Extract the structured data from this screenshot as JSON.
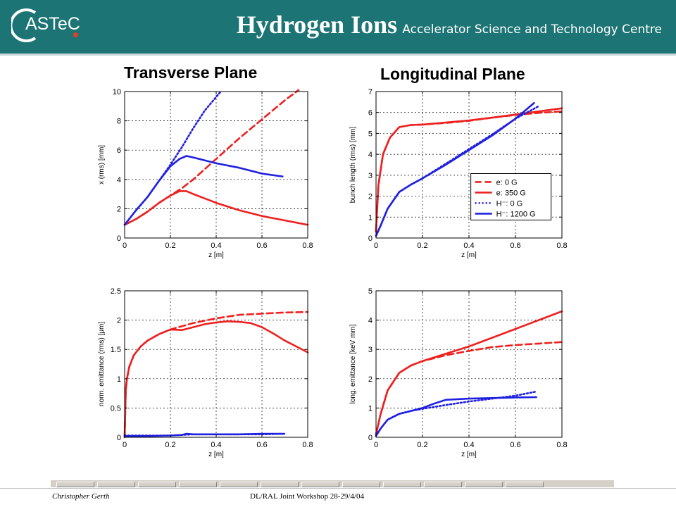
{
  "header": {
    "logo_text": "ASTeC",
    "title": "Hydrogen Ions",
    "organization": "Accelerator Science and Technology Centre"
  },
  "sections": {
    "left": "Transverse Plane",
    "right": "Longitudinal Plane"
  },
  "footer": {
    "author": "Christopher Gerth",
    "event": "DL/RAL Joint Workshop 28-29/4/04"
  },
  "colors": {
    "header_bg": "#1c7474",
    "electron": "#ee2020",
    "hion": "#2020e0"
  },
  "chart_data": [
    {
      "id": "x-rms",
      "type": "line",
      "xlabel": "z [m]",
      "ylabel": "x (rms) [mm]",
      "xlim": [
        0,
        0.8
      ],
      "ylim": [
        0,
        10
      ],
      "xticks": [
        0,
        0.2,
        0.4,
        0.6,
        0.8
      ],
      "yticks": [
        0,
        2,
        4,
        6,
        8,
        10
      ],
      "grid": true,
      "series": [
        {
          "color": "#ee2020",
          "style": "dashed",
          "x": [
            0,
            0.05,
            0.1,
            0.15,
            0.2,
            0.25,
            0.3,
            0.4,
            0.5,
            0.6,
            0.7,
            0.76
          ],
          "y": [
            0.9,
            1.3,
            1.8,
            2.4,
            2.9,
            3.4,
            4.0,
            5.4,
            6.8,
            8.1,
            9.4,
            10.1
          ]
        },
        {
          "color": "#ee2020",
          "style": "solid",
          "x": [
            0,
            0.05,
            0.1,
            0.15,
            0.2,
            0.24,
            0.27,
            0.3,
            0.35,
            0.4,
            0.5,
            0.6,
            0.7,
            0.8
          ],
          "y": [
            0.9,
            1.3,
            1.8,
            2.4,
            2.9,
            3.2,
            3.2,
            3.0,
            2.7,
            2.4,
            1.9,
            1.5,
            1.2,
            0.9
          ]
        },
        {
          "color": "#2020e0",
          "style": "dotted",
          "x": [
            0,
            0.05,
            0.1,
            0.15,
            0.2,
            0.25,
            0.3,
            0.35,
            0.42
          ],
          "y": [
            0.9,
            1.9,
            2.8,
            3.9,
            5.0,
            6.2,
            7.5,
            8.7,
            10.0
          ]
        },
        {
          "color": "#2020e0",
          "style": "solid",
          "x": [
            0,
            0.05,
            0.1,
            0.15,
            0.2,
            0.24,
            0.27,
            0.3,
            0.35,
            0.4,
            0.5,
            0.6,
            0.69
          ],
          "y": [
            0.9,
            1.9,
            2.8,
            3.9,
            4.9,
            5.4,
            5.6,
            5.5,
            5.3,
            5.1,
            4.8,
            4.4,
            4.2
          ]
        }
      ]
    },
    {
      "id": "bunch-length",
      "type": "line",
      "xlabel": "z [m]",
      "ylabel": "bunch length (rms) [mm]",
      "xlim": [
        0,
        0.8
      ],
      "ylim": [
        0,
        7
      ],
      "xticks": [
        0,
        0.2,
        0.4,
        0.6,
        0.8
      ],
      "yticks": [
        0,
        1,
        2,
        3,
        4,
        5,
        6,
        7
      ],
      "grid": true,
      "legend": {
        "position": "right",
        "entries": [
          {
            "label": "e: 0 G",
            "color": "#ee2020",
            "style": "dashed"
          },
          {
            "label": "e: 350 G",
            "color": "#ee2020",
            "style": "solid"
          },
          {
            "label": "H⁻: 0 G",
            "color": "#2020e0",
            "style": "dotted"
          },
          {
            "label": "H⁻: 1200 G",
            "color": "#2020e0",
            "style": "solid"
          }
        ]
      },
      "series": [
        {
          "color": "#ee2020",
          "style": "dashed",
          "x": [
            0,
            0.01,
            0.03,
            0.06,
            0.1,
            0.15,
            0.2,
            0.3,
            0.4,
            0.5,
            0.6,
            0.7,
            0.8
          ],
          "y": [
            0.3,
            2.5,
            4.0,
            4.8,
            5.3,
            5.4,
            5.42,
            5.5,
            5.6,
            5.75,
            5.88,
            5.98,
            6.05
          ]
        },
        {
          "color": "#ee2020",
          "style": "solid",
          "x": [
            0,
            0.01,
            0.03,
            0.06,
            0.1,
            0.15,
            0.2,
            0.3,
            0.4,
            0.5,
            0.6,
            0.7,
            0.8
          ],
          "y": [
            0.3,
            2.5,
            4.0,
            4.8,
            5.3,
            5.4,
            5.42,
            5.52,
            5.62,
            5.75,
            5.9,
            6.05,
            6.2
          ]
        },
        {
          "color": "#2020e0",
          "style": "dotted",
          "x": [
            0,
            0.02,
            0.05,
            0.1,
            0.15,
            0.2,
            0.3,
            0.4,
            0.5,
            0.6,
            0.7
          ],
          "y": [
            0.1,
            0.6,
            1.4,
            2.2,
            2.55,
            2.85,
            3.55,
            4.25,
            4.95,
            5.7,
            6.3
          ]
        },
        {
          "color": "#2020e0",
          "style": "solid",
          "x": [
            0,
            0.02,
            0.05,
            0.1,
            0.15,
            0.2,
            0.3,
            0.4,
            0.5,
            0.6,
            0.68
          ],
          "y": [
            0.1,
            0.6,
            1.4,
            2.2,
            2.55,
            2.85,
            3.5,
            4.2,
            4.9,
            5.7,
            6.45
          ]
        }
      ]
    },
    {
      "id": "norm-emittance",
      "type": "line",
      "xlabel": "z [m]",
      "ylabel": "norm. emittance (rms) [μm]",
      "xlim": [
        0,
        0.8
      ],
      "ylim": [
        0,
        2.5
      ],
      "xticks": [
        0,
        0.2,
        0.4,
        0.6,
        0.8
      ],
      "yticks": [
        0,
        0.5,
        1,
        1.5,
        2,
        2.5
      ],
      "grid": true,
      "series": [
        {
          "color": "#ee2020",
          "style": "dashed",
          "x": [
            0,
            0.005,
            0.01,
            0.02,
            0.04,
            0.07,
            0.1,
            0.15,
            0.2,
            0.3,
            0.4,
            0.5,
            0.6,
            0.7,
            0.8
          ],
          "y": [
            0,
            0.8,
            1.0,
            1.2,
            1.4,
            1.55,
            1.65,
            1.76,
            1.84,
            1.95,
            2.03,
            2.09,
            2.11,
            2.13,
            2.14
          ]
        },
        {
          "color": "#ee2020",
          "style": "solid",
          "x": [
            0,
            0.005,
            0.01,
            0.02,
            0.04,
            0.07,
            0.1,
            0.15,
            0.2,
            0.25,
            0.3,
            0.35,
            0.4,
            0.45,
            0.5,
            0.55,
            0.6,
            0.65,
            0.7,
            0.75,
            0.8
          ],
          "y": [
            0,
            0.8,
            1.0,
            1.2,
            1.4,
            1.55,
            1.65,
            1.76,
            1.84,
            1.83,
            1.88,
            1.93,
            1.96,
            1.98,
            1.97,
            1.95,
            1.88,
            1.77,
            1.65,
            1.55,
            1.45
          ]
        },
        {
          "color": "#2020e0",
          "style": "dotted",
          "x": [
            0,
            0.1,
            0.2,
            0.3,
            0.4,
            0.5,
            0.6,
            0.7
          ],
          "y": [
            0.03,
            0.03,
            0.03,
            0.05,
            0.05,
            0.05,
            0.05,
            0.06
          ]
        },
        {
          "color": "#2020e0",
          "style": "solid",
          "x": [
            0,
            0.1,
            0.2,
            0.25,
            0.27,
            0.3,
            0.4,
            0.5,
            0.6,
            0.69
          ],
          "y": [
            0.02,
            0.02,
            0.03,
            0.04,
            0.06,
            0.05,
            0.05,
            0.05,
            0.06,
            0.06
          ]
        }
      ]
    },
    {
      "id": "long-emittance",
      "type": "line",
      "xlabel": "z [m]",
      "ylabel": "long. emittance [keV mm]",
      "xlim": [
        0,
        0.8
      ],
      "ylim": [
        0,
        5
      ],
      "xticks": [
        0,
        0.2,
        0.4,
        0.6,
        0.8
      ],
      "yticks": [
        0,
        1,
        2,
        3,
        4,
        5
      ],
      "grid": true,
      "series": [
        {
          "color": "#ee2020",
          "style": "dashed",
          "x": [
            0,
            0.02,
            0.05,
            0.1,
            0.15,
            0.2,
            0.3,
            0.4,
            0.5,
            0.6,
            0.7,
            0.8
          ],
          "y": [
            0.1,
            0.8,
            1.6,
            2.2,
            2.45,
            2.6,
            2.8,
            2.95,
            3.08,
            3.15,
            3.2,
            3.25
          ]
        },
        {
          "color": "#ee2020",
          "style": "solid",
          "x": [
            0,
            0.02,
            0.05,
            0.1,
            0.15,
            0.2,
            0.3,
            0.4,
            0.5,
            0.6,
            0.7,
            0.8
          ],
          "y": [
            0.1,
            0.8,
            1.6,
            2.2,
            2.45,
            2.6,
            2.85,
            3.1,
            3.4,
            3.7,
            4.0,
            4.3
          ]
        },
        {
          "color": "#2020e0",
          "style": "dotted",
          "x": [
            0,
            0.02,
            0.05,
            0.1,
            0.15,
            0.2,
            0.3,
            0.4,
            0.5,
            0.6,
            0.69
          ],
          "y": [
            0.05,
            0.3,
            0.6,
            0.8,
            0.9,
            0.97,
            1.1,
            1.22,
            1.32,
            1.42,
            1.56
          ]
        },
        {
          "color": "#2020e0",
          "style": "solid",
          "x": [
            0,
            0.02,
            0.05,
            0.1,
            0.15,
            0.2,
            0.25,
            0.3,
            0.4,
            0.5,
            0.6,
            0.69
          ],
          "y": [
            0.05,
            0.3,
            0.6,
            0.8,
            0.9,
            1.0,
            1.15,
            1.28,
            1.32,
            1.34,
            1.36,
            1.37
          ]
        }
      ]
    }
  ]
}
